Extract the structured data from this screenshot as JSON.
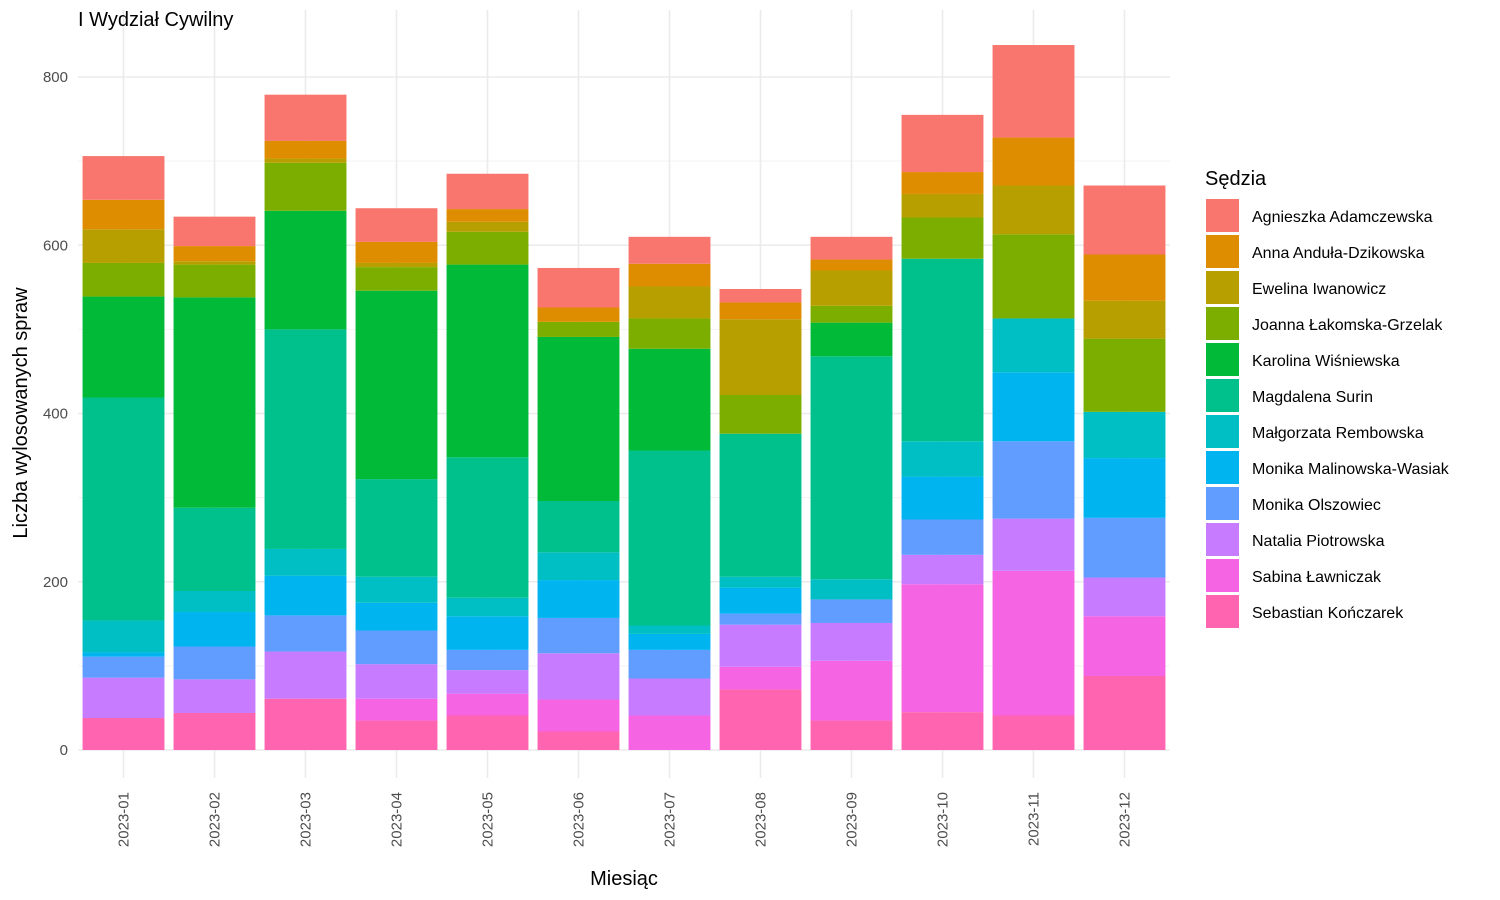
{
  "chart_data": {
    "type": "bar",
    "stacked": true,
    "title": "I Wydział Cywilny",
    "xlabel": "Miesiąc",
    "ylabel": "Liczba wylosowanych spraw",
    "ylim": [
      0,
      850
    ],
    "yticks": [
      0,
      200,
      400,
      600,
      800
    ],
    "grid": true,
    "legend_title": "Sędzia",
    "legend_position": "right",
    "categories": [
      "2023-01",
      "2023-02",
      "2023-03",
      "2023-04",
      "2023-05",
      "2023-06",
      "2023-07",
      "2023-08",
      "2023-09",
      "2023-10",
      "2023-11",
      "2023-12"
    ],
    "series": [
      {
        "name": "Agnieszka Adamczewska",
        "color": "#F8766D",
        "values": [
          52,
          35,
          55,
          40,
          42,
          47,
          32,
          16,
          27,
          68,
          110,
          82
        ]
      },
      {
        "name": "Anna Anduła-Dzikowska",
        "color": "#DE8C00",
        "values": [
          35,
          18,
          21,
          25,
          15,
          17,
          27,
          20,
          13,
          26,
          57,
          55
        ]
      },
      {
        "name": "Ewelina Iwanowicz",
        "color": "#B79F00",
        "values": [
          40,
          4,
          5,
          5,
          12,
          0,
          38,
          90,
          42,
          28,
          58,
          45
        ]
      },
      {
        "name": "Joanna Łakomska-Grzelak",
        "color": "#7CAE00",
        "values": [
          40,
          39,
          57,
          28,
          39,
          18,
          36,
          46,
          20,
          49,
          100,
          87
        ]
      },
      {
        "name": "Karolina Wiśniewska",
        "color": "#00BA38",
        "values": [
          120,
          250,
          141,
          224,
          229,
          195,
          121,
          0,
          40,
          0,
          0,
          0
        ]
      },
      {
        "name": "Magdalena Surin",
        "color": "#00C08B",
        "values": [
          265,
          99,
          261,
          116,
          167,
          61,
          208,
          170,
          265,
          217,
          0,
          0
        ]
      },
      {
        "name": "Małgorzata Rembowska",
        "color": "#00BFC4",
        "values": [
          38,
          25,
          32,
          31,
          22,
          33,
          10,
          13,
          24,
          42,
          64,
          55
        ]
      },
      {
        "name": "Monika Malinowska-Wasiak",
        "color": "#00B4F0",
        "values": [
          5,
          41,
          47,
          33,
          40,
          45,
          19,
          31,
          0,
          51,
          82,
          71
        ]
      },
      {
        "name": "Monika Olszowiec",
        "color": "#619CFF",
        "values": [
          25,
          39,
          43,
          40,
          24,
          42,
          34,
          13,
          28,
          42,
          92,
          71
        ]
      },
      {
        "name": "Natalia Piotrowska",
        "color": "#C77CFF",
        "values": [
          48,
          40,
          56,
          41,
          28,
          55,
          44,
          50,
          45,
          35,
          62,
          46
        ]
      },
      {
        "name": "Sabina Ławniczak",
        "color": "#F564E3",
        "values": [
          0,
          0,
          0,
          26,
          26,
          38,
          41,
          27,
          71,
          152,
          172,
          71
        ]
      },
      {
        "name": "Sebastian Kończarek",
        "color": "#FF64B0",
        "values": [
          38,
          44,
          61,
          35,
          41,
          22,
          0,
          72,
          35,
          45,
          41,
          88
        ]
      }
    ]
  }
}
